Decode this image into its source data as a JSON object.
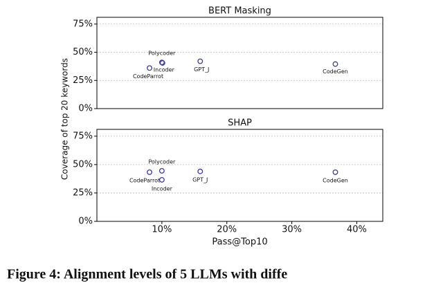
{
  "chart_data": [
    {
      "type": "scatter",
      "title": "BERT Masking",
      "y_label": "Coverage of top 20 keywords",
      "categories": [
        "CodeParrot",
        "Polycoder",
        "Incoder",
        "GPT_J",
        "CodeGen"
      ],
      "x": [
        8.1,
        10,
        10.1,
        15.9,
        36.7
      ],
      "values": [
        36,
        41,
        40.5,
        42,
        39.5
      ],
      "color": "#3b3ba0",
      "xlim": [
        0,
        44
      ],
      "ylim": [
        0,
        81
      ],
      "yticks": [
        {
          "value": 0,
          "label": "0%"
        },
        {
          "value": 25,
          "label": "25%"
        },
        {
          "value": 50,
          "label": "50%"
        },
        {
          "value": 75,
          "label": "75%"
        }
      ],
      "grid": true
    },
    {
      "type": "scatter",
      "title": "SHAP",
      "x_label": "Pass@Top10",
      "categories": [
        "CodeParrot",
        "Polycoder",
        "Incoder",
        "GPT_J",
        "CodeGen"
      ],
      "x": [
        8.1,
        10,
        10,
        15.9,
        36.7
      ],
      "values": [
        43.3,
        44.5,
        36.6,
        44,
        43.3
      ],
      "color": "#3b3ba0",
      "xlim": [
        0,
        44
      ],
      "ylim": [
        0,
        81
      ],
      "xticks": [
        {
          "value": 10,
          "label": "10%"
        },
        {
          "value": 20,
          "label": "20%"
        },
        {
          "value": 30,
          "label": "30%"
        },
        {
          "value": 40,
          "label": "40%"
        }
      ],
      "yticks": [
        {
          "value": 0,
          "label": "0%"
        },
        {
          "value": 25,
          "label": "25%"
        },
        {
          "value": 50,
          "label": "50%"
        },
        {
          "value": 75,
          "label": "75%"
        }
      ],
      "grid": true
    }
  ],
  "caption": "Figure 4: Alignment levels of 5 LLMs with diffe"
}
